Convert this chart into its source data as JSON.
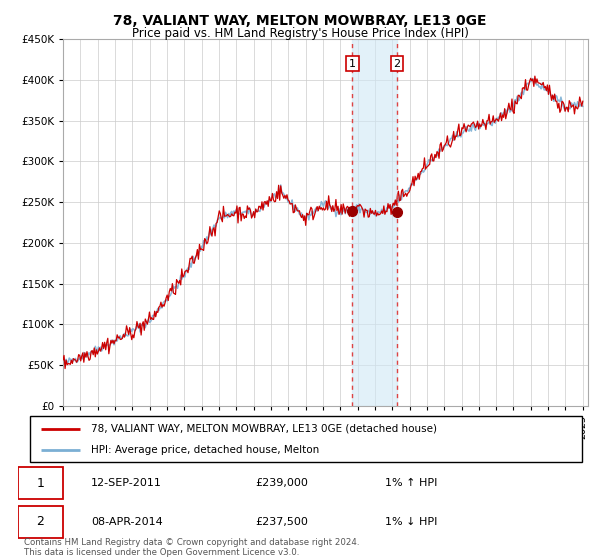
{
  "title": "78, VALIANT WAY, MELTON MOWBRAY, LE13 0GE",
  "subtitle": "Price paid vs. HM Land Registry's House Price Index (HPI)",
  "ylim": [
    0,
    450000
  ],
  "yticks": [
    0,
    50000,
    100000,
    150000,
    200000,
    250000,
    300000,
    350000,
    400000,
    450000
  ],
  "hpi_color": "#7bafd4",
  "price_color": "#cc0000",
  "grid_color": "#cccccc",
  "legend_entry1": "78, VALIANT WAY, MELTON MOWBRAY, LE13 0GE (detached house)",
  "legend_entry2": "HPI: Average price, detached house, Melton",
  "transaction1_date": "12-SEP-2011",
  "transaction1_price": "£239,000",
  "transaction1_hpi": "1% ↑ HPI",
  "transaction2_date": "08-APR-2014",
  "transaction2_price": "£237,500",
  "transaction2_hpi": "1% ↓ HPI",
  "footnote": "Contains HM Land Registry data © Crown copyright and database right 2024.\nThis data is licensed under the Open Government Licence v3.0.",
  "highlight_x1": 2011.7,
  "highlight_x2": 2014.27,
  "marker1_x": 2011.7,
  "marker1_y": 239000,
  "marker2_x": 2014.27,
  "marker2_y": 237500,
  "xmin": 1995,
  "xmax": 2025.3
}
